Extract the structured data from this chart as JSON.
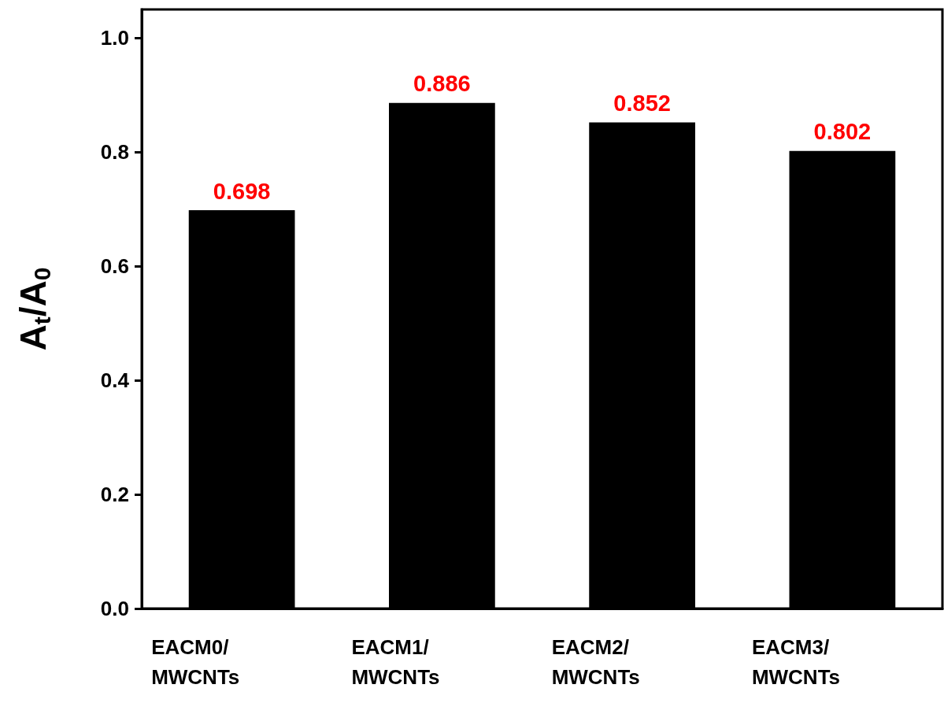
{
  "chart_data": {
    "type": "bar",
    "ylabel": "A$_{t}$/A$_{0}$",
    "categories": [
      "EACM0/\nMWCNTs",
      "EACM1/\nMWCNTs",
      "EACM2/\nMWCNTs",
      "EACM3/\nMWCNTs"
    ],
    "values": [
      0.698,
      0.886,
      0.852,
      0.802
    ],
    "color": "#000000",
    "ylim": [
      0,
      1.05
    ],
    "yticks": [
      {
        "value": 0,
        "label": "0.0"
      },
      {
        "value": 0.2,
        "label": "0.2"
      },
      {
        "value": 0.4,
        "label": "0.4"
      },
      {
        "value": 0.6,
        "label": "0.6"
      },
      {
        "value": 0.8,
        "label": "0.8"
      },
      {
        "value": 1,
        "label": "1.0"
      }
    ],
    "data_labels": true,
    "grid": false
  }
}
